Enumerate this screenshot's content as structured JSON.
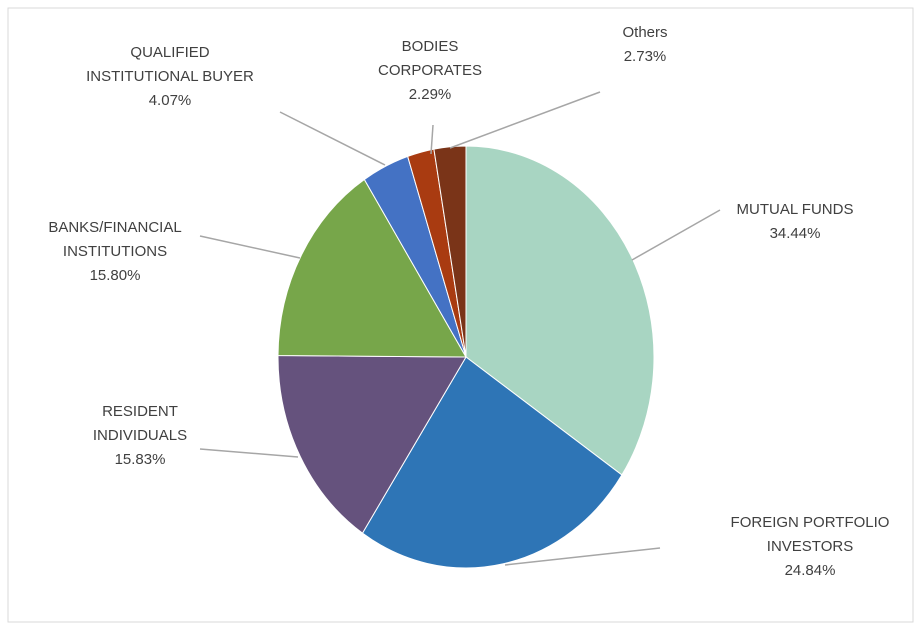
{
  "chart_data": {
    "type": "pie",
    "categories": [
      "MUTUAL FUNDS",
      "FOREIGN PORTFOLIO\nINVESTORS",
      "RESIDENT\nINDIVIDUALS",
      "BANKS/FINANCIAL\nINSTITUTIONS",
      "QUALIFIED\nINSTITUTIONAL BUYER",
      "BODIES\nCORPORATES",
      "Others"
    ],
    "values": [
      34.44,
      24.84,
      15.83,
      15.8,
      4.07,
      2.29,
      2.73
    ],
    "value_labels": [
      "34.44%",
      "24.84%",
      "15.83%",
      "15.80%",
      "4.07%",
      "2.29%",
      "2.73%"
    ],
    "colors": [
      "#a8d5c2",
      "#2e75b6",
      "#65527d",
      "#77a64a",
      "#4472c4",
      "#a93b11",
      "#7a3418"
    ]
  }
}
